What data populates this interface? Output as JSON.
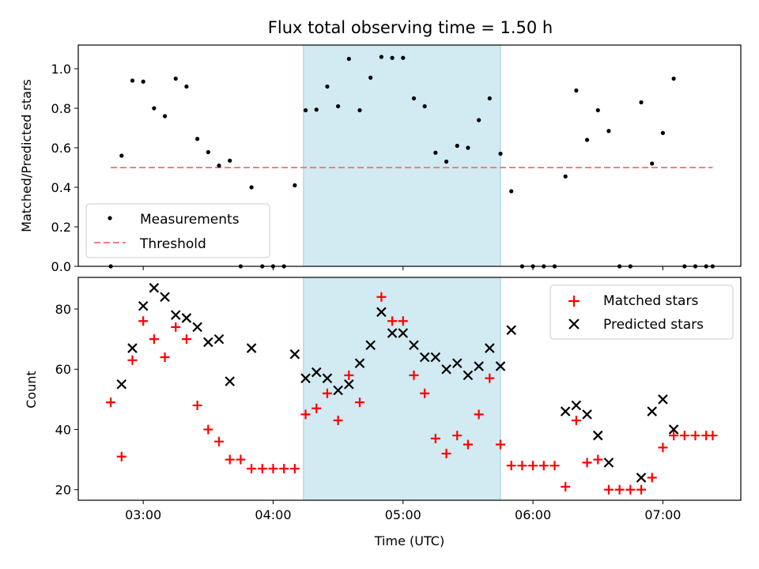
{
  "title": "Flux total observing time = 1.50 h",
  "xlabel": "Time (UTC)",
  "x_ticks": [
    "03:00",
    "04:00",
    "05:00",
    "06:00",
    "07:00"
  ],
  "highlight_span": {
    "start": "04:14",
    "end": "05:45",
    "color": "#add8e6"
  },
  "top": {
    "ylabel": "Matched/Predicted stars",
    "ylim": [
      0,
      1.12
    ],
    "y_ticks": [
      "0.0",
      "0.2",
      "0.4",
      "0.6",
      "0.8",
      "1.0"
    ],
    "legend": {
      "measurements": "Measurements",
      "threshold": "Threshold"
    },
    "threshold": {
      "value": 0.5,
      "from": "02:45",
      "to": "07:23",
      "color": "#f08080"
    }
  },
  "bottom": {
    "ylabel": "Count",
    "ylim": [
      16.5,
      90.5
    ],
    "y_ticks": [
      "20",
      "40",
      "60",
      "80"
    ],
    "legend": {
      "matched": "Matched stars",
      "predicted": "Predicted stars"
    }
  },
  "chart_data": [
    {
      "type": "scatter",
      "ylabel": "Matched/Predicted stars",
      "series": [
        {
          "name": "Measurements",
          "color": "#000000",
          "points": [
            [
              "02:45",
              0.0
            ],
            [
              "02:50",
              0.56
            ],
            [
              "02:55",
              0.94
            ],
            [
              "03:00",
              0.935
            ],
            [
              "03:05",
              0.8
            ],
            [
              "03:10",
              0.76
            ],
            [
              "03:15",
              0.95
            ],
            [
              "03:20",
              0.91
            ],
            [
              "03:25",
              0.645
            ],
            [
              "03:30",
              0.578
            ],
            [
              "03:35",
              0.51
            ],
            [
              "03:40",
              0.535
            ],
            [
              "03:45",
              0.0
            ],
            [
              "03:50",
              0.4
            ],
            [
              "03:55",
              0.0
            ],
            [
              "04:00",
              0.0
            ],
            [
              "04:05",
              0.0
            ],
            [
              "04:10",
              0.41
            ],
            [
              "04:15",
              0.79
            ],
            [
              "04:20",
              0.793
            ],
            [
              "04:25",
              0.91
            ],
            [
              "04:30",
              0.81
            ],
            [
              "04:35",
              1.05
            ],
            [
              "04:40",
              0.79
            ],
            [
              "04:45",
              0.955
            ],
            [
              "04:50",
              1.06
            ],
            [
              "04:55",
              1.055
            ],
            [
              "05:00",
              1.055
            ],
            [
              "05:05",
              0.85
            ],
            [
              "05:10",
              0.81
            ],
            [
              "05:15",
              0.575
            ],
            [
              "05:20",
              0.53
            ],
            [
              "05:25",
              0.61
            ],
            [
              "05:30",
              0.6
            ],
            [
              "05:35",
              0.74
            ],
            [
              "05:40",
              0.85
            ],
            [
              "05:45",
              0.57
            ],
            [
              "05:50",
              0.38
            ],
            [
              "05:55",
              0.0
            ],
            [
              "06:00",
              0.0
            ],
            [
              "06:05",
              0.0
            ],
            [
              "06:10",
              0.0
            ],
            [
              "06:15",
              0.455
            ],
            [
              "06:20",
              0.89
            ],
            [
              "06:25",
              0.64
            ],
            [
              "06:30",
              0.79
            ],
            [
              "06:35",
              0.685
            ],
            [
              "06:40",
              0.0
            ],
            [
              "06:45",
              0.0
            ],
            [
              "06:50",
              0.83
            ],
            [
              "06:55",
              0.52
            ],
            [
              "07:00",
              0.675
            ],
            [
              "07:05",
              0.95
            ],
            [
              "07:10",
              0.0
            ],
            [
              "07:15",
              0.0
            ],
            [
              "07:20",
              0.0
            ],
            [
              "07:23",
              0.0
            ]
          ]
        },
        {
          "name": "Threshold",
          "color": "#f08080",
          "points": [
            [
              "02:45",
              0.5
            ],
            [
              "07:23",
              0.5
            ]
          ]
        }
      ]
    },
    {
      "type": "scatter",
      "ylabel": "Count",
      "series": [
        {
          "name": "Matched stars",
          "marker": "+",
          "color": "#ff0000",
          "points": [
            [
              "02:45",
              49
            ],
            [
              "02:50",
              31
            ],
            [
              "02:55",
              63
            ],
            [
              "03:00",
              76
            ],
            [
              "03:05",
              70
            ],
            [
              "03:10",
              64
            ],
            [
              "03:15",
              74
            ],
            [
              "03:20",
              70
            ],
            [
              "03:25",
              48
            ],
            [
              "03:30",
              40
            ],
            [
              "03:35",
              36
            ],
            [
              "03:40",
              30
            ],
            [
              "03:45",
              30
            ],
            [
              "03:50",
              27
            ],
            [
              "03:55",
              27
            ],
            [
              "04:00",
              27
            ],
            [
              "04:05",
              27
            ],
            [
              "04:10",
              27
            ],
            [
              "04:15",
              45
            ],
            [
              "04:20",
              47
            ],
            [
              "04:25",
              52
            ],
            [
              "04:30",
              43
            ],
            [
              "04:35",
              58
            ],
            [
              "04:40",
              49
            ],
            [
              "04:50",
              84
            ],
            [
              "04:55",
              76
            ],
            [
              "05:00",
              76
            ],
            [
              "05:05",
              58
            ],
            [
              "05:10",
              52
            ],
            [
              "05:15",
              37
            ],
            [
              "05:20",
              32
            ],
            [
              "05:25",
              38
            ],
            [
              "05:30",
              35
            ],
            [
              "05:35",
              45
            ],
            [
              "05:40",
              57
            ],
            [
              "05:45",
              35
            ],
            [
              "05:50",
              28
            ],
            [
              "05:55",
              28
            ],
            [
              "06:00",
              28
            ],
            [
              "06:05",
              28
            ],
            [
              "06:10",
              28
            ],
            [
              "06:15",
              21
            ],
            [
              "06:20",
              43
            ],
            [
              "06:25",
              29
            ],
            [
              "06:30",
              30
            ],
            [
              "06:35",
              20
            ],
            [
              "06:40",
              20
            ],
            [
              "06:45",
              20
            ],
            [
              "06:50",
              20
            ],
            [
              "06:55",
              24
            ],
            [
              "07:00",
              34
            ],
            [
              "07:05",
              38
            ],
            [
              "07:10",
              38
            ],
            [
              "07:15",
              38
            ],
            [
              "07:20",
              38
            ],
            [
              "07:23",
              38
            ]
          ]
        },
        {
          "name": "Predicted stars",
          "marker": "x",
          "color": "#000000",
          "points": [
            [
              "02:50",
              55
            ],
            [
              "02:55",
              67
            ],
            [
              "03:00",
              81
            ],
            [
              "03:05",
              87
            ],
            [
              "03:10",
              84
            ],
            [
              "03:15",
              78
            ],
            [
              "03:20",
              77
            ],
            [
              "03:25",
              74
            ],
            [
              "03:30",
              69
            ],
            [
              "03:35",
              70
            ],
            [
              "03:40",
              56
            ],
            [
              "03:50",
              67
            ],
            [
              "04:10",
              65
            ],
            [
              "04:15",
              57
            ],
            [
              "04:20",
              59
            ],
            [
              "04:25",
              57
            ],
            [
              "04:30",
              53
            ],
            [
              "04:35",
              55
            ],
            [
              "04:40",
              62
            ],
            [
              "04:45",
              68
            ],
            [
              "04:50",
              79
            ],
            [
              "04:55",
              72
            ],
            [
              "05:00",
              72
            ],
            [
              "05:05",
              68
            ],
            [
              "05:10",
              64
            ],
            [
              "05:15",
              64
            ],
            [
              "05:20",
              60
            ],
            [
              "05:25",
              62
            ],
            [
              "05:30",
              58
            ],
            [
              "05:35",
              61
            ],
            [
              "05:40",
              67
            ],
            [
              "05:45",
              61
            ],
            [
              "05:50",
              73
            ],
            [
              "06:15",
              46
            ],
            [
              "06:20",
              48
            ],
            [
              "06:25",
              45
            ],
            [
              "06:30",
              38
            ],
            [
              "06:35",
              29
            ],
            [
              "06:50",
              24
            ],
            [
              "06:55",
              46
            ],
            [
              "07:00",
              50
            ],
            [
              "07:05",
              40
            ]
          ]
        }
      ]
    }
  ]
}
